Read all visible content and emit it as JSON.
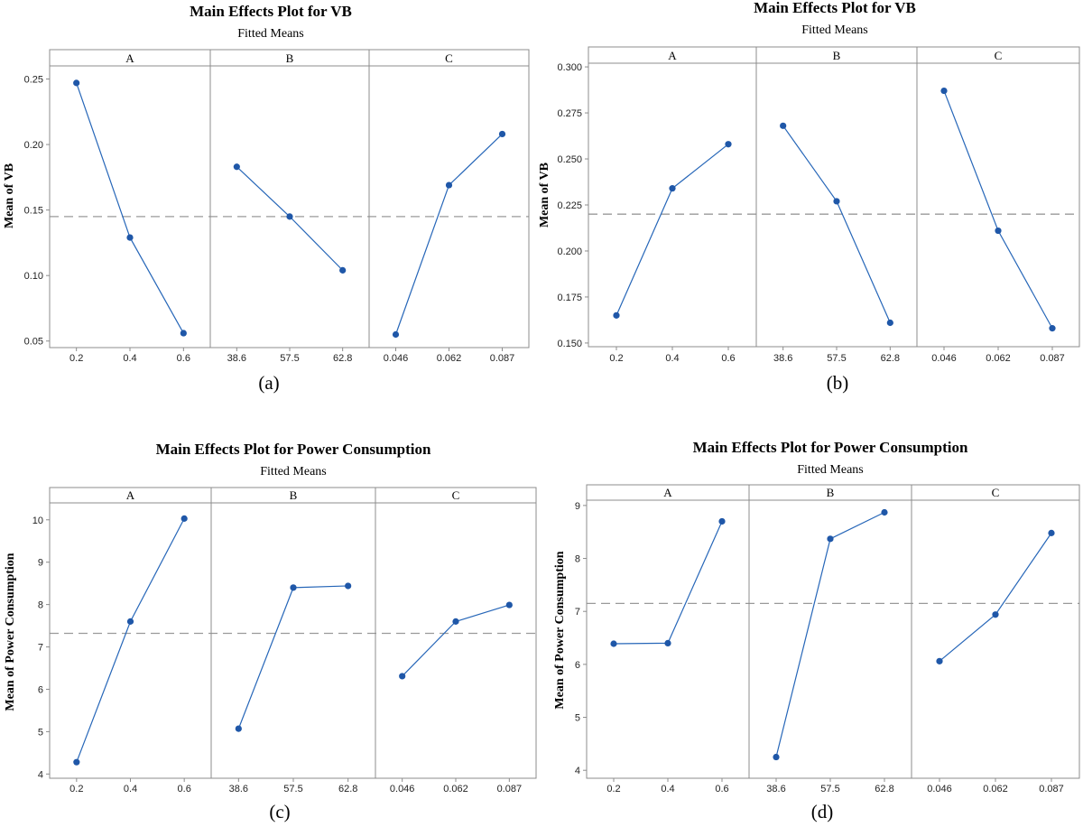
{
  "chart_data": [
    {
      "type": "line",
      "caption": "(a)",
      "title": "Main Effects Plot for VB",
      "subtitle": "Fitted Means",
      "ylabel": "Mean of VB",
      "ylim": [
        0.045,
        0.26
      ],
      "yticks": [
        "0.05",
        "0.10",
        "0.15",
        "0.20",
        "0.25"
      ],
      "overall_mean": 0.145,
      "facets": [
        {
          "name": "A",
          "categories": [
            "0.2",
            "0.4",
            "0.6"
          ],
          "values": [
            0.247,
            0.129,
            0.056
          ]
        },
        {
          "name": "B",
          "categories": [
            "38.6",
            "57.5",
            "62.8"
          ],
          "values": [
            0.183,
            0.145,
            0.104
          ]
        },
        {
          "name": "C",
          "categories": [
            "0.046",
            "0.062",
            "0.087"
          ],
          "values": [
            0.055,
            0.169,
            0.208
          ]
        }
      ]
    },
    {
      "type": "line",
      "caption": "(b)",
      "title": "Main Effects Plot for VB",
      "subtitle": "Fitted Means",
      "ylabel": "Mean of VB",
      "ylim": [
        0.148,
        0.302
      ],
      "yticks": [
        "0.150",
        "0.175",
        "0.200",
        "0.225",
        "0.250",
        "0.275",
        "0.300"
      ],
      "overall_mean": 0.22,
      "facets": [
        {
          "name": "A",
          "categories": [
            "0.2",
            "0.4",
            "0.6"
          ],
          "values": [
            0.165,
            0.234,
            0.258
          ]
        },
        {
          "name": "B",
          "categories": [
            "38.6",
            "57.5",
            "62.8"
          ],
          "values": [
            0.268,
            0.227,
            0.161
          ]
        },
        {
          "name": "C",
          "categories": [
            "0.046",
            "0.062",
            "0.087"
          ],
          "values": [
            0.287,
            0.211,
            0.158
          ]
        }
      ]
    },
    {
      "type": "line",
      "caption": "(c)",
      "title": "Main Effects Plot for Power Consumption",
      "subtitle": "Fitted Means",
      "ylabel": "Mean of Power Consumption",
      "ylim": [
        3.9,
        10.4
      ],
      "yticks": [
        "4",
        "5",
        "6",
        "7",
        "8",
        "9",
        "10"
      ],
      "overall_mean": 7.32,
      "facets": [
        {
          "name": "A",
          "categories": [
            "0.2",
            "0.4",
            "0.6"
          ],
          "values": [
            4.28,
            7.6,
            10.03
          ]
        },
        {
          "name": "B",
          "categories": [
            "38.6",
            "57.5",
            "62.8"
          ],
          "values": [
            5.07,
            8.4,
            8.44
          ]
        },
        {
          "name": "C",
          "categories": [
            "0.046",
            "0.062",
            "0.087"
          ],
          "values": [
            6.31,
            7.6,
            7.99
          ]
        }
      ]
    },
    {
      "type": "line",
      "caption": "(d)",
      "title": "Main Effects Plot for Power Consumption",
      "subtitle": "Fitted Means",
      "ylabel": "Mean of Power Consumption",
      "ylim": [
        3.85,
        9.1
      ],
      "yticks": [
        "4",
        "5",
        "6",
        "7",
        "8",
        "9"
      ],
      "overall_mean": 7.15,
      "facets": [
        {
          "name": "A",
          "categories": [
            "0.2",
            "0.4",
            "0.6"
          ],
          "values": [
            6.39,
            6.4,
            8.7
          ]
        },
        {
          "name": "B",
          "categories": [
            "38.6",
            "57.5",
            "62.8"
          ],
          "values": [
            4.25,
            8.37,
            8.87
          ]
        },
        {
          "name": "C",
          "categories": [
            "0.046",
            "0.062",
            "0.087"
          ],
          "values": [
            6.06,
            6.94,
            8.48
          ]
        }
      ]
    }
  ],
  "colors": {
    "series": "#2666b8",
    "marker": "#1f57a8",
    "mean_line": "#9a9a9a",
    "frame": "#8c8c8c"
  }
}
